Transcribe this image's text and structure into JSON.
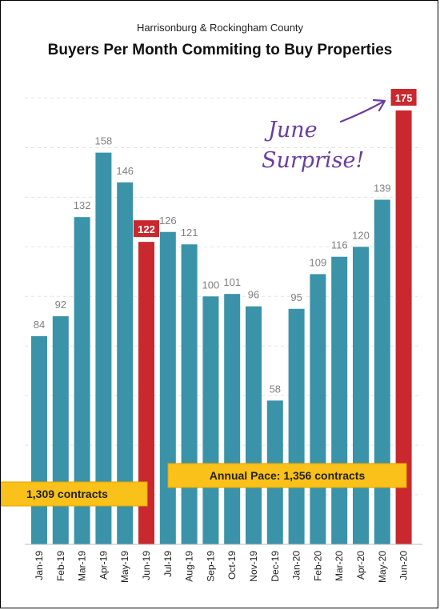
{
  "chart_data": {
    "type": "bar",
    "subtitle": "Harrisonburg & Rockingham County",
    "title": "Buyers Per Month Commiting to Buy Properties",
    "categories": [
      "Jan-19",
      "Feb-19",
      "Mar-19",
      "Apr-19",
      "May-19",
      "Jun-19",
      "Jul-19",
      "Aug-19",
      "Sep-19",
      "Oct-19",
      "Nov-19",
      "Dec-19",
      "Jan-20",
      "Feb-20",
      "Mar-20",
      "Apr-20",
      "May-20",
      "Jun-20"
    ],
    "values": [
      84,
      92,
      132,
      158,
      146,
      122,
      126,
      121,
      100,
      101,
      96,
      58,
      95,
      109,
      116,
      120,
      139,
      175
    ],
    "highlighted": [
      "Jun-19",
      "Jun-20"
    ],
    "ylim": [
      0,
      180
    ],
    "grid": true,
    "annotations": [
      {
        "text": "1,309 contracts"
      },
      {
        "text": "Annual Pace: 1,356 contracts"
      },
      {
        "text_lines": [
          "June",
          "Surprise!"
        ]
      }
    ]
  },
  "colors": {
    "bar": "#3a93a8",
    "highlight": "#c8282e",
    "pace_box": "#f9c11a",
    "annotation": "#6a3ea0",
    "grid": "#e3e3e3"
  }
}
